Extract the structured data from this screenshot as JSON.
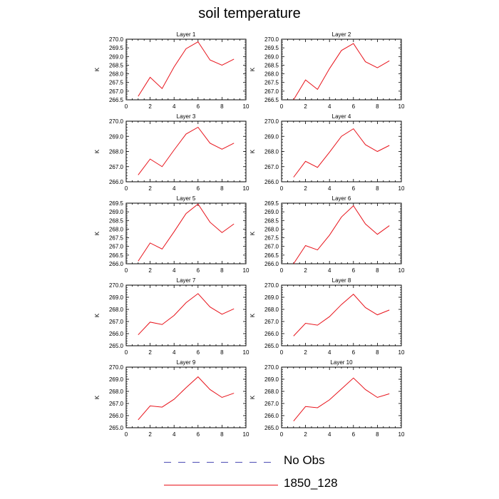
{
  "title": "soil temperature",
  "chart_data": {
    "type": "line",
    "ylabel": "K",
    "x": [
      1,
      2,
      3,
      4,
      5,
      6,
      7,
      8,
      9
    ],
    "xlim": [
      0,
      10
    ],
    "xticks": [
      "0",
      "2",
      "4",
      "6",
      "8",
      "10"
    ],
    "line_color": "#e8131b",
    "panels": [
      {
        "title": "Layer 1",
        "ylim": [
          266.5,
          270.0
        ],
        "yticks": [
          "266.5",
          "267.0",
          "267.5",
          "268.0",
          "268.5",
          "269.0",
          "269.5",
          "270.0"
        ],
        "series": [
          {
            "name": "1850_128",
            "values": [
              266.7,
              267.8,
              267.15,
              268.4,
              269.45,
              269.85,
              268.8,
              268.5,
              268.85
            ]
          }
        ]
      },
      {
        "title": "Layer 2",
        "ylim": [
          266.5,
          270.0
        ],
        "yticks": [
          "266.5",
          "267.0",
          "267.5",
          "268.0",
          "268.5",
          "269.0",
          "269.5",
          "270.0"
        ],
        "series": [
          {
            "name": "1850_128",
            "values": [
              266.5,
              267.65,
              267.1,
              268.3,
              269.35,
              269.75,
              268.7,
              268.35,
              268.75
            ]
          }
        ]
      },
      {
        "title": "Layer 3",
        "ylim": [
          266.0,
          270.0
        ],
        "yticks": [
          "266.0",
          "267.0",
          "268.0",
          "269.0",
          "270.0"
        ],
        "series": [
          {
            "name": "1850_128",
            "values": [
              266.45,
              267.5,
              267.0,
              268.1,
              269.15,
              269.6,
              268.55,
              268.15,
              268.55
            ]
          }
        ]
      },
      {
        "title": "Layer 4",
        "ylim": [
          266.0,
          270.0
        ],
        "yticks": [
          "266.0",
          "267.0",
          "268.0",
          "269.0",
          "270.0"
        ],
        "series": [
          {
            "name": "1850_128",
            "values": [
              266.3,
              267.35,
              266.95,
              267.95,
              269.0,
              269.5,
              268.45,
              268.0,
              268.4
            ]
          }
        ]
      },
      {
        "title": "Layer 5",
        "ylim": [
          266.0,
          269.5
        ],
        "yticks": [
          "266.0",
          "266.5",
          "267.0",
          "267.5",
          "268.0",
          "268.5",
          "269.0",
          "269.5"
        ],
        "series": [
          {
            "name": "1850_128",
            "values": [
              266.15,
              267.2,
              266.85,
              267.85,
              268.9,
              269.45,
              268.4,
              267.8,
              268.3
            ]
          }
        ]
      },
      {
        "title": "Layer 6",
        "ylim": [
          266.0,
          269.5
        ],
        "yticks": [
          "266.0",
          "266.5",
          "267.0",
          "267.5",
          "268.0",
          "268.5",
          "269.0",
          "269.5"
        ],
        "series": [
          {
            "name": "1850_128",
            "values": [
              266.0,
              267.05,
              266.8,
              267.65,
              268.7,
              269.35,
              268.3,
              267.7,
              268.2
            ]
          }
        ]
      },
      {
        "title": "Layer 7",
        "ylim": [
          265.0,
          270.0
        ],
        "yticks": [
          "265.0",
          "266.0",
          "267.0",
          "268.0",
          "269.0",
          "270.0"
        ],
        "series": [
          {
            "name": "1850_128",
            "values": [
              265.9,
              266.95,
              266.75,
              267.5,
              268.55,
              269.3,
              268.2,
              267.6,
              268.05
            ]
          }
        ]
      },
      {
        "title": "Layer 8",
        "ylim": [
          265.0,
          270.0
        ],
        "yticks": [
          "265.0",
          "266.0",
          "267.0",
          "268.0",
          "269.0",
          "270.0"
        ],
        "series": [
          {
            "name": "1850_128",
            "values": [
              265.8,
              266.85,
              266.7,
              267.4,
              268.4,
              269.25,
              268.15,
              267.55,
              267.95
            ]
          }
        ]
      },
      {
        "title": "Layer 9",
        "ylim": [
          265.0,
          270.0
        ],
        "yticks": [
          "265.0",
          "266.0",
          "267.0",
          "268.0",
          "269.0",
          "270.0"
        ],
        "series": [
          {
            "name": "1850_128",
            "values": [
              265.65,
              266.8,
              266.7,
              267.35,
              268.3,
              269.2,
              268.15,
              267.5,
              267.85
            ]
          }
        ]
      },
      {
        "title": "Layer 10",
        "ylim": [
          265.0,
          270.0
        ],
        "yticks": [
          "265.0",
          "266.0",
          "267.0",
          "268.0",
          "269.0",
          "270.0"
        ],
        "series": [
          {
            "name": "1850_128",
            "values": [
              265.55,
              266.75,
              266.65,
              267.3,
              268.2,
              269.1,
              268.15,
              267.5,
              267.8
            ]
          }
        ]
      }
    ],
    "legend": [
      {
        "label": "No Obs",
        "color": "#4c4cb5",
        "style": "dashed"
      },
      {
        "label": "1850_128",
        "color": "#e8131b",
        "style": "solid"
      }
    ]
  }
}
